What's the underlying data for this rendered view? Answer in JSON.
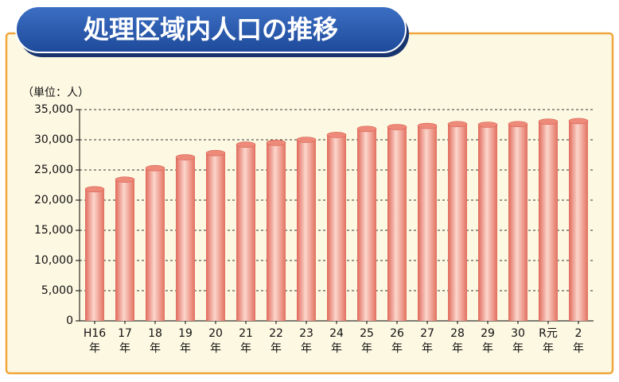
{
  "chart_data": {
    "type": "bar",
    "title": "処理区域内人口の推移",
    "unit_label": "（単位：人）",
    "categories": [
      "H16年",
      "17年",
      "18年",
      "19年",
      "20年",
      "21年",
      "22年",
      "23年",
      "24年",
      "25年",
      "26年",
      "27年",
      "28年",
      "29年",
      "30年",
      "R元年",
      "2年"
    ],
    "values": [
      21800,
      23400,
      25300,
      27100,
      27800,
      29200,
      29500,
      30000,
      30800,
      31800,
      32100,
      32300,
      32600,
      32500,
      32600,
      33000,
      33100
    ],
    "color": "#ee8a7a",
    "ylim": [
      0,
      35000
    ],
    "yticks": [
      0,
      {
        "value": 5000,
        "label": "5,000"
      },
      {
        "value": 10000,
        "label": "10,000"
      },
      {
        "value": 15000,
        "label": "15,000"
      },
      {
        "value": 20000,
        "label": "20,000"
      },
      {
        "value": 25000,
        "label": "25,000"
      },
      {
        "value": 30000,
        "label": "30,000"
      },
      {
        "value": 35000,
        "label": "35,000"
      }
    ],
    "grid": true
  }
}
